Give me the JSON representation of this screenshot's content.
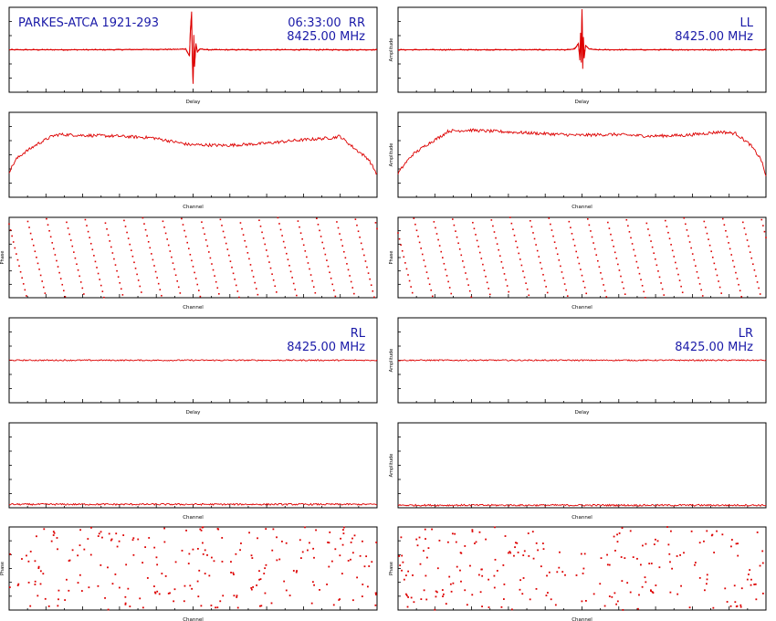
{
  "header": {
    "source": "PARKES-ATCA 1921-293",
    "time": "06:33:00",
    "freq": "8425.00 MHz"
  },
  "pol": {
    "rr": "RR",
    "ll": "LL",
    "rl": "RL",
    "lr": "LR"
  },
  "colors": {
    "trace": "#dd0000",
    "text": "#1a1aa8",
    "frame": "#000000"
  },
  "chart_data": [
    {
      "type": "line",
      "panel": "RR-delay",
      "title": "",
      "xlabel": "Delay",
      "ylabel": "",
      "xlim": [
        -256,
        256
      ],
      "ylim": [
        -1,
        1
      ],
      "grid": false,
      "series": [
        {
          "name": "RR",
          "x": [
            -256,
            -128,
            -20,
            -10,
            -5,
            -4,
            -2,
            -1,
            0,
            1,
            2,
            4,
            6,
            10,
            20,
            128,
            256
          ],
          "y": [
            0,
            0,
            0.01,
            0.02,
            -0.15,
            0.4,
            0.9,
            -0.3,
            -0.8,
            0.35,
            -0.4,
            0.15,
            -0.05,
            0.02,
            0,
            0,
            0
          ]
        }
      ]
    },
    {
      "type": "line",
      "panel": "LL-delay",
      "title": "",
      "xlabel": "Delay",
      "ylabel": "Amplitude",
      "xlim": [
        -256,
        256
      ],
      "ylim": [
        -1,
        1
      ],
      "grid": false,
      "series": [
        {
          "name": "LL",
          "x": [
            -256,
            -128,
            -20,
            -10,
            -5,
            -3,
            -2,
            -1,
            0,
            1,
            2,
            3,
            5,
            10,
            20,
            128,
            256
          ],
          "y": [
            0,
            0,
            0,
            0.02,
            0.15,
            -0.25,
            0.4,
            -0.3,
            0.95,
            -0.45,
            0.3,
            -0.2,
            0.1,
            0.02,
            0,
            0,
            0
          ]
        }
      ]
    },
    {
      "type": "line",
      "panel": "RR-amplitude",
      "title": "",
      "xlabel": "Channel",
      "ylabel": "",
      "xlim": [
        0,
        512
      ],
      "ylim": [
        0,
        1
      ],
      "grid": false,
      "series": [
        {
          "name": "RR",
          "x": [
            0,
            10,
            20,
            40,
            60,
            70,
            100,
            150,
            200,
            250,
            300,
            350,
            400,
            450,
            460,
            480,
            500,
            512
          ],
          "y": [
            0.3,
            0.45,
            0.52,
            0.63,
            0.72,
            0.74,
            0.73,
            0.72,
            0.7,
            0.62,
            0.61,
            0.63,
            0.67,
            0.7,
            0.72,
            0.58,
            0.45,
            0.27
          ]
        }
      ]
    },
    {
      "type": "line",
      "panel": "LL-amplitude",
      "title": "",
      "xlabel": "Channel",
      "ylabel": "Amplitude",
      "xlim": [
        0,
        512
      ],
      "ylim": [
        0,
        1
      ],
      "grid": false,
      "series": [
        {
          "name": "LL",
          "x": [
            0,
            10,
            20,
            40,
            60,
            70,
            100,
            150,
            200,
            250,
            300,
            350,
            400,
            450,
            470,
            490,
            505,
            512
          ],
          "y": [
            0.28,
            0.4,
            0.5,
            0.62,
            0.72,
            0.78,
            0.79,
            0.77,
            0.75,
            0.73,
            0.74,
            0.72,
            0.73,
            0.77,
            0.75,
            0.62,
            0.45,
            0.25
          ]
        }
      ]
    },
    {
      "type": "scatter",
      "panel": "RR-phase",
      "title": "",
      "xlabel": "Channel",
      "ylabel": "Phase",
      "xlim": [
        0,
        512
      ],
      "ylim": [
        -180,
        180
      ],
      "grid": false,
      "phase_wrap": {
        "slope_deg_per_channel": -13.4,
        "offset_deg": 150
      }
    },
    {
      "type": "scatter",
      "panel": "LL-phase",
      "title": "",
      "xlabel": "Channel",
      "ylabel": "Phase",
      "xlim": [
        0,
        512
      ],
      "ylim": [
        -180,
        180
      ],
      "grid": false,
      "phase_wrap": {
        "slope_deg_per_channel": -13.4,
        "offset_deg": 110
      }
    },
    {
      "type": "line",
      "panel": "RL-delay",
      "title": "",
      "xlabel": "Delay",
      "ylabel": "",
      "xlim": [
        -256,
        256
      ],
      "ylim": [
        -1,
        1
      ],
      "grid": false,
      "series": [
        {
          "name": "RL",
          "x": [
            -256,
            256
          ],
          "y": [
            0,
            0
          ]
        }
      ]
    },
    {
      "type": "line",
      "panel": "LR-delay",
      "title": "",
      "xlabel": "Delay",
      "ylabel": "Amplitude",
      "xlim": [
        -256,
        256
      ],
      "ylim": [
        -1,
        1
      ],
      "grid": false,
      "series": [
        {
          "name": "LR",
          "x": [
            -256,
            256
          ],
          "y": [
            0,
            0
          ]
        }
      ]
    },
    {
      "type": "line",
      "panel": "RL-amplitude",
      "title": "",
      "xlabel": "Channel",
      "ylabel": "",
      "xlim": [
        0,
        512
      ],
      "ylim": [
        0,
        5
      ],
      "grid": false,
      "series": [
        {
          "name": "RL",
          "x": [
            0,
            512
          ],
          "y": [
            0.2,
            0.2
          ]
        }
      ]
    },
    {
      "type": "line",
      "panel": "LR-amplitude",
      "title": "",
      "xlabel": "Channel",
      "ylabel": "Amplitude",
      "xlim": [
        0,
        512
      ],
      "ylim": [
        0,
        5
      ],
      "grid": false,
      "series": [
        {
          "name": "LR",
          "x": [
            0,
            512
          ],
          "y": [
            0.15,
            0.15
          ]
        }
      ]
    },
    {
      "type": "scatter",
      "panel": "RL-phase",
      "title": "",
      "xlabel": "Channel",
      "ylabel": "Phase",
      "xlim": [
        0,
        512
      ],
      "ylim": [
        -180,
        180
      ],
      "grid": false,
      "distribution": "uniform-random"
    },
    {
      "type": "scatter",
      "panel": "LR-phase",
      "title": "",
      "xlabel": "Channel",
      "ylabel": "Phase",
      "xlim": [
        0,
        512
      ],
      "ylim": [
        -180,
        180
      ],
      "grid": false,
      "distribution": "uniform-random"
    }
  ]
}
